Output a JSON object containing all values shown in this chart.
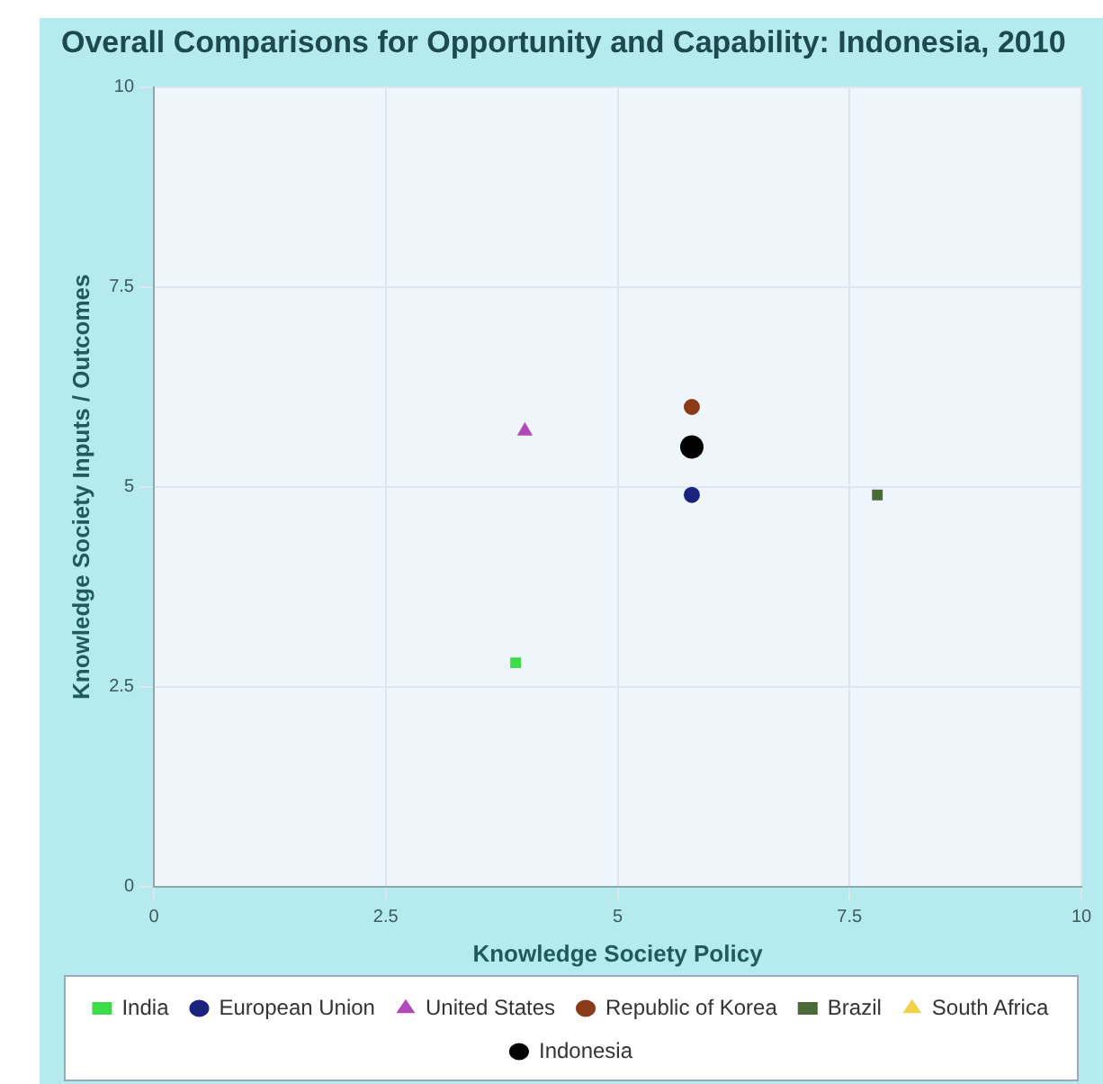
{
  "chart_data": {
    "type": "scatter",
    "title": "Overall Comparisons for Opportunity and Capability: Indonesia, 2010",
    "xlabel": "Knowledge Society Policy",
    "ylabel": "Knowledge Society Inputs / Outcomes",
    "xlim": [
      0,
      10
    ],
    "ylim": [
      0,
      10
    ],
    "xticks": [
      0,
      2.5,
      5,
      7.5,
      10
    ],
    "yticks": [
      0,
      2.5,
      5,
      7.5,
      10
    ],
    "grid": true,
    "legend": "bottom",
    "series": [
      {
        "name": "India",
        "color": "#3ddc4a",
        "marker": "square",
        "x": [
          3.9
        ],
        "values": [
          2.8
        ]
      },
      {
        "name": "European Union",
        "color": "#1a237e",
        "marker": "circle",
        "x": [
          5.8
        ],
        "values": [
          4.9
        ]
      },
      {
        "name": "United States",
        "color": "#b04ab8",
        "marker": "triangle",
        "x": [
          4.0
        ],
        "values": [
          5.7
        ]
      },
      {
        "name": "Republic of Korea",
        "color": "#8b3a1a",
        "marker": "circle",
        "x": [
          5.8
        ],
        "values": [
          6.0
        ]
      },
      {
        "name": "Brazil",
        "color": "#4a6a3a",
        "marker": "square",
        "x": [
          7.8
        ],
        "values": [
          4.9
        ]
      },
      {
        "name": "South Africa",
        "color": "#f2d24a",
        "marker": "triangle",
        "x": [
          null
        ],
        "values": [
          null
        ]
      },
      {
        "name": "Indonesia",
        "color": "#000000",
        "marker": "circle",
        "x": [
          5.8
        ],
        "values": [
          5.5
        ]
      }
    ]
  }
}
